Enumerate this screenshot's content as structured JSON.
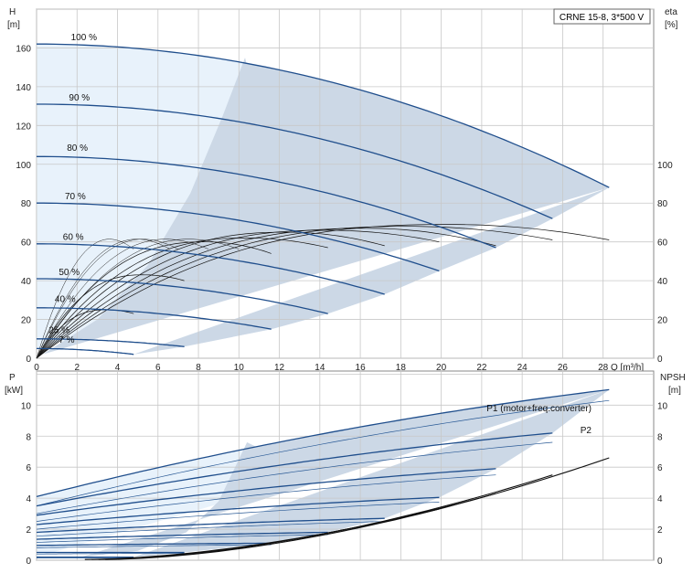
{
  "chart_data": [
    {
      "type": "line",
      "title": "CRNE 15-8, 3*500 V",
      "x_unit_label": "Q [m³/h]",
      "left_axis": {
        "label_line1": "H",
        "label_line2": "[m]",
        "ticks": [
          0,
          20,
          40,
          60,
          80,
          100,
          120,
          140,
          160
        ],
        "ylim": [
          0,
          180
        ]
      },
      "right_axis": {
        "label_line1": "eta",
        "label_line2": "[%]",
        "ticks": [
          0,
          20,
          40,
          60,
          80,
          100
        ],
        "ylim": [
          0,
          180
        ]
      },
      "x_ticks": [
        0,
        2,
        4,
        6,
        8,
        10,
        12,
        14,
        16,
        18,
        20,
        22,
        24,
        26,
        28
      ],
      "xlim": [
        0,
        30.5
      ],
      "grid": true,
      "speed_labels": [
        {
          "label": "100 %",
          "q": 1.7,
          "h": 163
        },
        {
          "label": "90 %",
          "q": 1.6,
          "h": 132
        },
        {
          "label": "80 %",
          "q": 1.5,
          "h": 106
        },
        {
          "label": "70 %",
          "q": 1.4,
          "h": 81
        },
        {
          "label": "60 %",
          "q": 1.3,
          "h": 60
        },
        {
          "label": "50 %",
          "q": 1.1,
          "h": 42
        },
        {
          "label": "40 %",
          "q": 0.9,
          "h": 28
        },
        {
          "label": "25 %",
          "q": 0.6,
          "h": 12
        },
        {
          "label": "7 %",
          "q": 1.1,
          "h": 7
        }
      ],
      "head_curves": [
        {
          "speed": 1.0,
          "shut_off_head": 162,
          "q_max": 28.3,
          "h_at_q_max": 88
        },
        {
          "speed": 0.9,
          "shut_off_head": 131,
          "q_max": 25.5,
          "h_at_q_max": 72
        },
        {
          "speed": 0.8,
          "shut_off_head": 104,
          "q_max": 22.7,
          "h_at_q_max": 57
        },
        {
          "speed": 0.7,
          "shut_off_head": 80,
          "q_max": 19.9,
          "h_at_q_max": 45
        },
        {
          "speed": 0.6,
          "shut_off_head": 59,
          "q_max": 17.2,
          "h_at_q_max": 33
        },
        {
          "speed": 0.5,
          "shut_off_head": 41,
          "q_max": 14.4,
          "h_at_q_max": 23
        },
        {
          "speed": 0.4,
          "shut_off_head": 26,
          "q_max": 11.6,
          "h_at_q_max": 15
        },
        {
          "speed": 0.25,
          "shut_off_head": 10,
          "q_max": 7.3,
          "h_at_q_max": 6
        },
        {
          "speed": 0.07,
          "shut_off_head": 5,
          "q_max": 4.8,
          "h_at_q_max": 2
        }
      ],
      "efficiency_curves": [
        {
          "q_max": 28.3,
          "eta_at_q_max": 61,
          "eta_peak": 69
        },
        {
          "q_max": 25.5,
          "eta_at_q_max": 61,
          "eta_peak": 68
        },
        {
          "q_max": 22.7,
          "eta_at_q_max": 58,
          "eta_peak": 67
        },
        {
          "q_max": 19.9,
          "eta_at_q_max": 60,
          "eta_peak": 66
        },
        {
          "q_max": 17.2,
          "eta_at_q_max": 58,
          "eta_peak": 65
        },
        {
          "q_max": 14.4,
          "eta_at_q_max": 57,
          "eta_peak": 62
        },
        {
          "q_max": 11.6,
          "eta_at_q_max": 54,
          "eta_peak": 60
        },
        {
          "q_max": 7.3,
          "eta_at_q_max": 40,
          "eta_peak": 43
        },
        {
          "q_max": 4.8,
          "eta_at_q_max": 23,
          "eta_peak": 25
        }
      ]
    },
    {
      "type": "line",
      "x_unit_label": "Q [m³/h]",
      "left_axis": {
        "label_line1": "P",
        "label_line2": "[kW]",
        "ticks": [
          0,
          2,
          4,
          6,
          8,
          10
        ],
        "ylim": [
          0,
          12.2
        ]
      },
      "right_axis": {
        "label_line1": "NPSH",
        "label_line2": "[m]",
        "ticks": [
          0,
          2,
          4,
          6,
          8,
          10
        ],
        "ylim": [
          0,
          12.2
        ]
      },
      "x_ticks": [
        0,
        2,
        4,
        6,
        8,
        10,
        12,
        14,
        16,
        18,
        20,
        22,
        24,
        26,
        28
      ],
      "xlim": [
        0,
        30.5
      ],
      "grid": true,
      "series_labels": {
        "p1": "P1 (motor+freq.converter)",
        "p2": "P2"
      },
      "p1_curves": [
        {
          "speed": 1.0,
          "p_start": 4.1,
          "q_max": 28.3,
          "p_end": 11.0
        },
        {
          "speed": 0.9,
          "p_start": 3.5,
          "q_max": 25.5,
          "p_end": 8.2
        },
        {
          "speed": 0.8,
          "p_start": 2.9,
          "q_max": 22.7,
          "p_end": 5.9
        },
        {
          "speed": 0.7,
          "p_start": 2.3,
          "q_max": 19.9,
          "p_end": 4.05
        },
        {
          "speed": 0.6,
          "p_start": 1.8,
          "q_max": 17.2,
          "p_end": 2.7
        },
        {
          "speed": 0.5,
          "p_start": 1.35,
          "q_max": 14.4,
          "p_end": 1.8
        },
        {
          "speed": 0.4,
          "p_start": 0.95,
          "q_max": 11.6,
          "p_end": 1.1
        },
        {
          "speed": 0.25,
          "p_start": 0.5,
          "q_max": 7.3,
          "p_end": 0.5
        },
        {
          "speed": 0.07,
          "p_start": 0.2,
          "q_max": 4.8,
          "p_end": 0.2
        }
      ],
      "p2_curves": [
        {
          "speed": 1.0,
          "p_start": 3.5,
          "q_max": 28.3,
          "p_end": 10.3
        },
        {
          "speed": 0.9,
          "p_start": 3.0,
          "q_max": 25.5,
          "p_end": 7.6
        },
        {
          "speed": 0.8,
          "p_start": 2.5,
          "q_max": 22.7,
          "p_end": 5.5
        },
        {
          "speed": 0.7,
          "p_start": 2.0,
          "q_max": 19.9,
          "p_end": 3.75
        },
        {
          "speed": 0.6,
          "p_start": 1.55,
          "q_max": 17.2,
          "p_end": 2.5
        },
        {
          "speed": 0.5,
          "p_start": 1.15,
          "q_max": 14.4,
          "p_end": 1.65
        },
        {
          "speed": 0.4,
          "p_start": 0.8,
          "q_max": 11.6,
          "p_end": 1.0
        },
        {
          "speed": 0.25,
          "p_start": 0.4,
          "q_max": 7.3,
          "p_end": 0.45
        },
        {
          "speed": 0.07,
          "p_start": 0.15,
          "q_max": 4.8,
          "p_end": 0.15
        }
      ],
      "npsh_curves": [
        {
          "q_max": 28.3,
          "npsh_end": 6.6
        },
        {
          "q_max": 25.5,
          "npsh_end": 5.5
        },
        {
          "q_max": 22.7,
          "npsh_end": 4.3
        },
        {
          "q_max": 19.9,
          "npsh_end": 3.3
        }
      ]
    }
  ],
  "colors": {
    "grid": "#c8c8c8",
    "curve_blue": "#1f4e8c",
    "region_dark": "#ccd8e6",
    "region_light": "#e8f2fb",
    "efficiency": "#111111"
  }
}
